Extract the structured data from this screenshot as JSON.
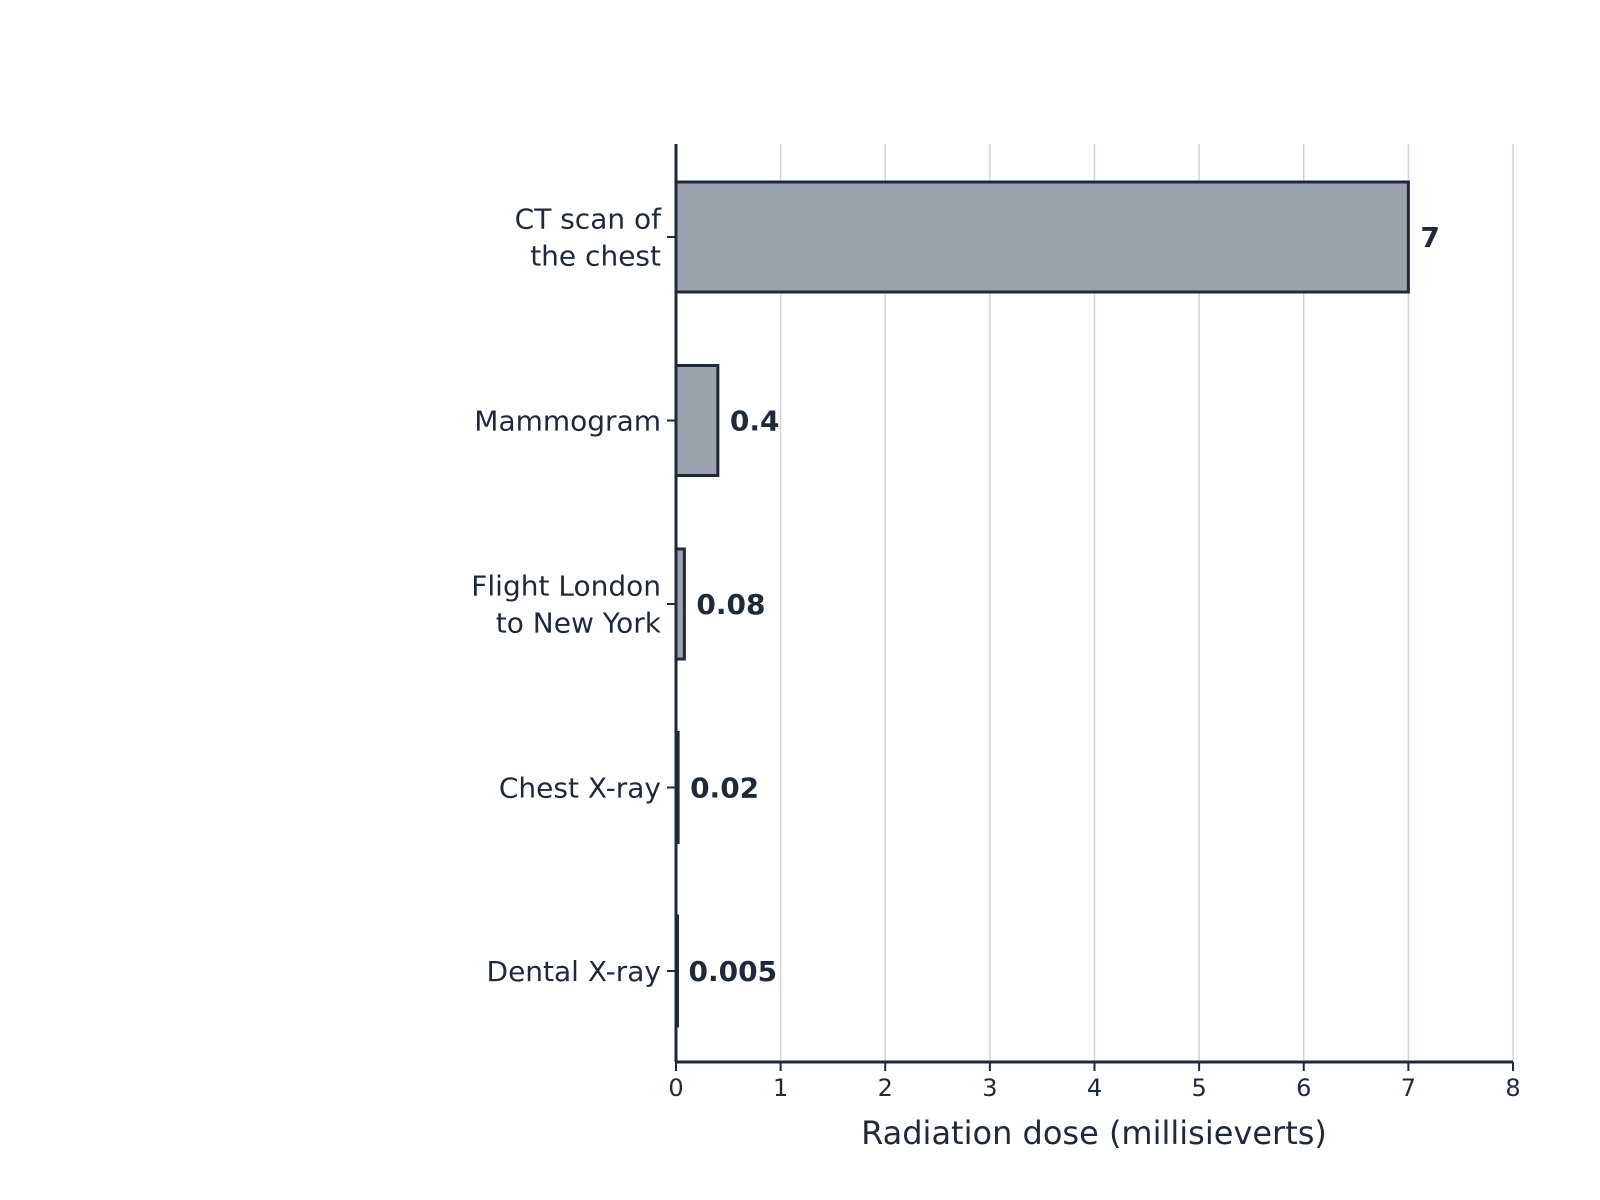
{
  "chart_data": {
    "type": "bar",
    "orientation": "horizontal",
    "categories": [
      [
        "CT scan of",
        "the chest"
      ],
      [
        "Mammogram"
      ],
      [
        "Flight London",
        "to New York"
      ],
      [
        "Chest X-ray"
      ],
      [
        "Dental X-ray"
      ]
    ],
    "values": [
      7,
      0.4,
      0.08,
      0.02,
      0.005
    ],
    "value_labels": [
      "7",
      "0.4",
      "0.08",
      "0.02",
      "0.005"
    ],
    "title": "",
    "xlabel": "Radiation dose (millisieverts)",
    "ylabel": "",
    "xlim": [
      0,
      8
    ],
    "xticks": [
      0,
      1,
      2,
      3,
      4,
      5,
      6,
      7,
      8
    ],
    "grid": "vertical",
    "legend": "none",
    "colors": {
      "bar_fill": "#9ca3af",
      "bar_edge": "#1f2937",
      "grid": "#d1d5db",
      "text": "#1f2937"
    }
  }
}
